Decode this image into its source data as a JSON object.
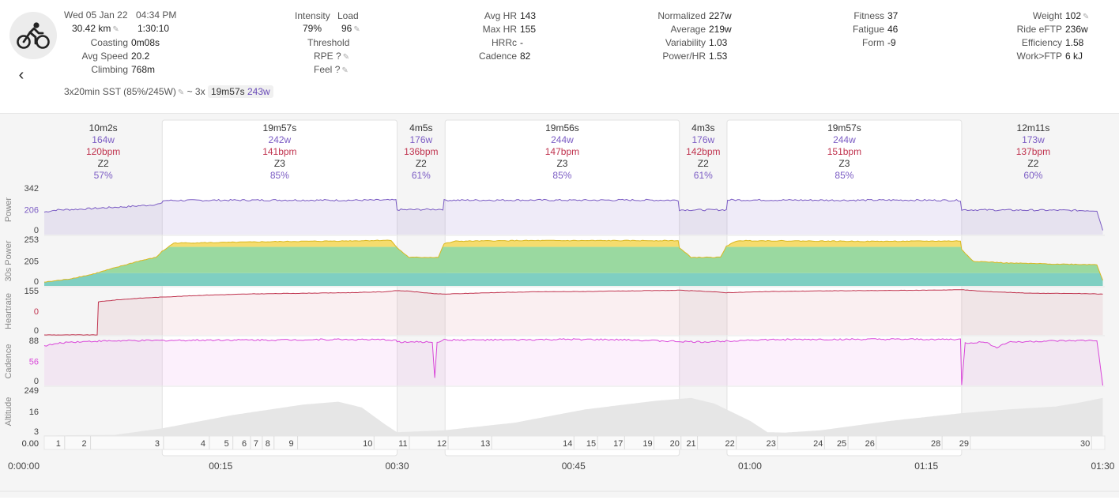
{
  "header": {
    "date": "Wed 05 Jan 22",
    "time": "04:34 PM",
    "distance": "30.42 km",
    "duration": "1:30:10",
    "back_icon": "chevron-left-icon",
    "avatar_icon": "bicycle-icon"
  },
  "left_stats": [
    {
      "label": "Coasting",
      "value": "0m08s"
    },
    {
      "label": "Avg Speed",
      "value": "20.2"
    },
    {
      "label": "Climbing",
      "value": "768m"
    }
  ],
  "intensity_block": {
    "intensity_label": "Intensity",
    "intensity_value": "79%",
    "load_label": "Load",
    "load_value": "96",
    "threshold_label": "Threshold",
    "rpe_label": "RPE",
    "rpe_value": "?",
    "feel_label": "Feel",
    "feel_value": "?"
  },
  "hr_stats": [
    {
      "label": "Avg HR",
      "value": "143"
    },
    {
      "label": "Max HR",
      "value": "155"
    },
    {
      "label": "HRRc",
      "value": "-"
    },
    {
      "label": "Cadence",
      "value": "82"
    }
  ],
  "power_stats": [
    {
      "label": "Normalized",
      "value": "227w"
    },
    {
      "label": "Average",
      "value": "219w"
    },
    {
      "label": "Variability",
      "value": "1.03"
    },
    {
      "label": "Power/HR",
      "value": "1.53"
    }
  ],
  "fitness_stats": [
    {
      "label": "Fitness",
      "value": "37"
    },
    {
      "label": "Fatigue",
      "value": "46"
    },
    {
      "label": "Form",
      "value": "-9"
    }
  ],
  "right_stats": [
    {
      "label": "Weight",
      "value": "102"
    },
    {
      "label": "Ride eFTP",
      "value": "236w"
    },
    {
      "label": "Efficiency",
      "value": "1.58"
    },
    {
      "label": "Work>FTP",
      "value": "6 kJ"
    }
  ],
  "workout": {
    "name": "3x20min SST (85%/245W)",
    "tilde": "~ 3x",
    "duration": "19m57s",
    "power": "243w"
  },
  "colors": {
    "power": "#7b5cc4",
    "hr": "#c0344f",
    "cadence": "#d946d9",
    "zone_yellow": "#f5dc6e",
    "zone_green": "#9ad9a0",
    "zone_teal": "#7fcfc2",
    "altitude": "#e6e6e6"
  },
  "chart_data": {
    "type": "line",
    "x_unit": "minutes",
    "x_range": [
      0,
      90.17
    ],
    "x_tick_labels": [
      "0:00:00",
      "00:15",
      "00:30",
      "00:45",
      "01:00",
      "01:15",
      "01:30"
    ],
    "x_ticks": [
      0,
      15,
      30,
      45,
      60,
      75,
      90
    ],
    "intervals": [
      {
        "start": 0,
        "end": 10.03,
        "duration": "10m2s",
        "power": "164w",
        "hr": "120bpm",
        "zone": "Z2",
        "pct": "57%",
        "highlight": false
      },
      {
        "start": 10.03,
        "end": 30.0,
        "duration": "19m57s",
        "power": "242w",
        "hr": "141bpm",
        "zone": "Z3",
        "pct": "85%",
        "highlight": true
      },
      {
        "start": 30.0,
        "end": 34.08,
        "duration": "4m5s",
        "power": "176w",
        "hr": "136bpm",
        "zone": "Z2",
        "pct": "61%",
        "highlight": false
      },
      {
        "start": 34.08,
        "end": 54.0,
        "duration": "19m56s",
        "power": "244w",
        "hr": "147bpm",
        "zone": "Z3",
        "pct": "85%",
        "highlight": true
      },
      {
        "start": 54.0,
        "end": 58.05,
        "duration": "4m3s",
        "power": "176w",
        "hr": "142bpm",
        "zone": "Z2",
        "pct": "61%",
        "highlight": false
      },
      {
        "start": 58.05,
        "end": 78.0,
        "duration": "19m57s",
        "power": "244w",
        "hr": "151bpm",
        "zone": "Z3",
        "pct": "85%",
        "highlight": true
      },
      {
        "start": 78.0,
        "end": 90.17,
        "duration": "12m11s",
        "power": "173w",
        "hr": "137bpm",
        "zone": "Z2",
        "pct": "60%",
        "highlight": false
      }
    ],
    "panels": [
      {
        "name": "Power",
        "ticks": [
          "342",
          "206",
          "0"
        ],
        "tick_values": [
          342,
          206,
          0
        ],
        "ylim": [
          0,
          342
        ]
      },
      {
        "name": "30s Power",
        "ticks": [
          "253",
          "205",
          "0"
        ],
        "tick_values": [
          253,
          205,
          0
        ],
        "ylim": [
          0,
          253
        ]
      },
      {
        "name": "Heartrate",
        "ticks": [
          "155",
          "0",
          "0"
        ],
        "tick_values": [
          155,
          0,
          0
        ],
        "ylim": [
          0,
          155
        ]
      },
      {
        "name": "Cadence",
        "ticks": [
          "88",
          "56",
          "0"
        ],
        "tick_values": [
          88,
          56,
          0
        ],
        "ylim": [
          0,
          88
        ]
      },
      {
        "name": "Altitude",
        "ticks": [
          "249",
          "16",
          "3"
        ],
        "tick_values": [
          249,
          16,
          3
        ],
        "ylim": [
          0,
          249
        ]
      }
    ],
    "series": [
      {
        "name": "Power",
        "points": [
          [
            0,
            160
          ],
          [
            1,
            175
          ],
          [
            3,
            180
          ],
          [
            5,
            190
          ],
          [
            7,
            198
          ],
          [
            9,
            210
          ],
          [
            10,
            220
          ],
          [
            10.1,
            242
          ],
          [
            15,
            244
          ],
          [
            20,
            245
          ],
          [
            25,
            244
          ],
          [
            29.9,
            245
          ],
          [
            30,
            176
          ],
          [
            32,
            178
          ],
          [
            33.9,
            180
          ],
          [
            34,
            244
          ],
          [
            40,
            245
          ],
          [
            45,
            244
          ],
          [
            50,
            245
          ],
          [
            53.9,
            244
          ],
          [
            54,
            176
          ],
          [
            56,
            175
          ],
          [
            58,
            176
          ],
          [
            58.1,
            246
          ],
          [
            63,
            245
          ],
          [
            68,
            244
          ],
          [
            73,
            245
          ],
          [
            77.9,
            243
          ],
          [
            78,
            176
          ],
          [
            82,
            174
          ],
          [
            86,
            173
          ],
          [
            89.5,
            170
          ],
          [
            90,
            30
          ]
        ]
      },
      {
        "name": "30s Power",
        "points": [
          [
            0,
            20
          ],
          [
            2,
            35
          ],
          [
            4,
            60
          ],
          [
            6,
            95
          ],
          [
            8,
            130
          ],
          [
            9.5,
            150
          ],
          [
            10,
            180
          ],
          [
            11,
            225
          ],
          [
            15,
            228
          ],
          [
            20,
            233
          ],
          [
            25,
            236
          ],
          [
            29.5,
            240
          ],
          [
            30,
            200
          ],
          [
            31,
            150
          ],
          [
            33.5,
            150
          ],
          [
            34,
            222
          ],
          [
            35,
            235
          ],
          [
            40,
            238
          ],
          [
            45,
            238
          ],
          [
            50,
            238
          ],
          [
            53.9,
            238
          ],
          [
            54,
            200
          ],
          [
            55,
            150
          ],
          [
            57.5,
            150
          ],
          [
            58,
            210
          ],
          [
            59,
            238
          ],
          [
            65,
            236
          ],
          [
            70,
            234
          ],
          [
            77.9,
            236
          ],
          [
            78,
            190
          ],
          [
            79,
            130
          ],
          [
            82,
            120
          ],
          [
            86,
            115
          ],
          [
            89.5,
            112
          ],
          [
            90,
            30
          ]
        ]
      },
      {
        "name": "Heartrate",
        "points": [
          [
            0,
            0
          ],
          [
            4.5,
            0
          ],
          [
            4.6,
            112
          ],
          [
            6,
            118
          ],
          [
            8,
            124
          ],
          [
            10,
            128
          ],
          [
            14,
            135
          ],
          [
            18,
            139
          ],
          [
            22,
            141
          ],
          [
            26,
            143
          ],
          [
            29,
            146
          ],
          [
            30,
            150
          ],
          [
            31,
            148
          ],
          [
            33,
            140
          ],
          [
            34,
            138
          ],
          [
            38,
            143
          ],
          [
            42,
            146
          ],
          [
            46,
            147
          ],
          [
            50,
            149
          ],
          [
            54,
            151
          ],
          [
            56,
            148
          ],
          [
            58,
            143
          ],
          [
            62,
            147
          ],
          [
            66,
            149
          ],
          [
            70,
            150
          ],
          [
            74,
            151
          ],
          [
            78,
            153
          ],
          [
            80,
            147
          ],
          [
            84,
            141
          ],
          [
            88,
            140
          ],
          [
            90,
            138
          ]
        ]
      },
      {
        "name": "Cadence",
        "points": [
          [
            0,
            75
          ],
          [
            2,
            82
          ],
          [
            5,
            84
          ],
          [
            10,
            85
          ],
          [
            15,
            86
          ],
          [
            20,
            86
          ],
          [
            25,
            87
          ],
          [
            29.9,
            86
          ],
          [
            30,
            82
          ],
          [
            33,
            82
          ],
          [
            33.2,
            15
          ],
          [
            33.4,
            82
          ],
          [
            34,
            86
          ],
          [
            40,
            86
          ],
          [
            45,
            87
          ],
          [
            50,
            86
          ],
          [
            54,
            83
          ],
          [
            56,
            82
          ],
          [
            58,
            84
          ],
          [
            60,
            86
          ],
          [
            65,
            87
          ],
          [
            70,
            87
          ],
          [
            77.9,
            87
          ],
          [
            78,
            0
          ],
          [
            78.3,
            80
          ],
          [
            80,
            82
          ],
          [
            81,
            72
          ],
          [
            82,
            82
          ],
          [
            86,
            84
          ],
          [
            89.5,
            85
          ],
          [
            90,
            0
          ]
        ]
      },
      {
        "name": "Altitude",
        "points": [
          [
            0,
            3
          ],
          [
            6,
            6
          ],
          [
            10,
            40
          ],
          [
            16,
            110
          ],
          [
            22,
            165
          ],
          [
            25,
            180
          ],
          [
            27,
            150
          ],
          [
            29,
            60
          ],
          [
            30,
            20
          ],
          [
            34,
            30
          ],
          [
            40,
            70
          ],
          [
            46,
            140
          ],
          [
            52,
            185
          ],
          [
            55,
            200
          ],
          [
            57,
            170
          ],
          [
            60,
            80
          ],
          [
            61.5,
            20
          ],
          [
            63,
            18
          ],
          [
            66,
            30
          ],
          [
            72,
            80
          ],
          [
            78,
            120
          ],
          [
            82,
            140
          ],
          [
            86,
            155
          ],
          [
            88,
            175
          ],
          [
            90,
            200
          ]
        ]
      }
    ],
    "laps": [
      "1",
      "2",
      "3",
      "4",
      "5",
      "6",
      "7",
      "8",
      "9",
      "10",
      "11",
      "12",
      "13",
      "14",
      "15",
      "17",
      "19",
      "20",
      "21",
      "22",
      "23",
      "24",
      "25",
      "26",
      "28",
      "29",
      "30"
    ],
    "lap_positions": [
      1.2,
      3.4,
      9.6,
      13.5,
      15.5,
      17.0,
      18.0,
      19.0,
      21.0,
      27.5,
      30.5,
      33.8,
      37.5,
      44.5,
      46.5,
      48.8,
      51.3,
      53.6,
      55.0,
      58.3,
      61.8,
      65.8,
      67.8,
      70.2,
      75.8,
      78.2,
      88.5
    ],
    "lap_start_label": "0.00"
  }
}
